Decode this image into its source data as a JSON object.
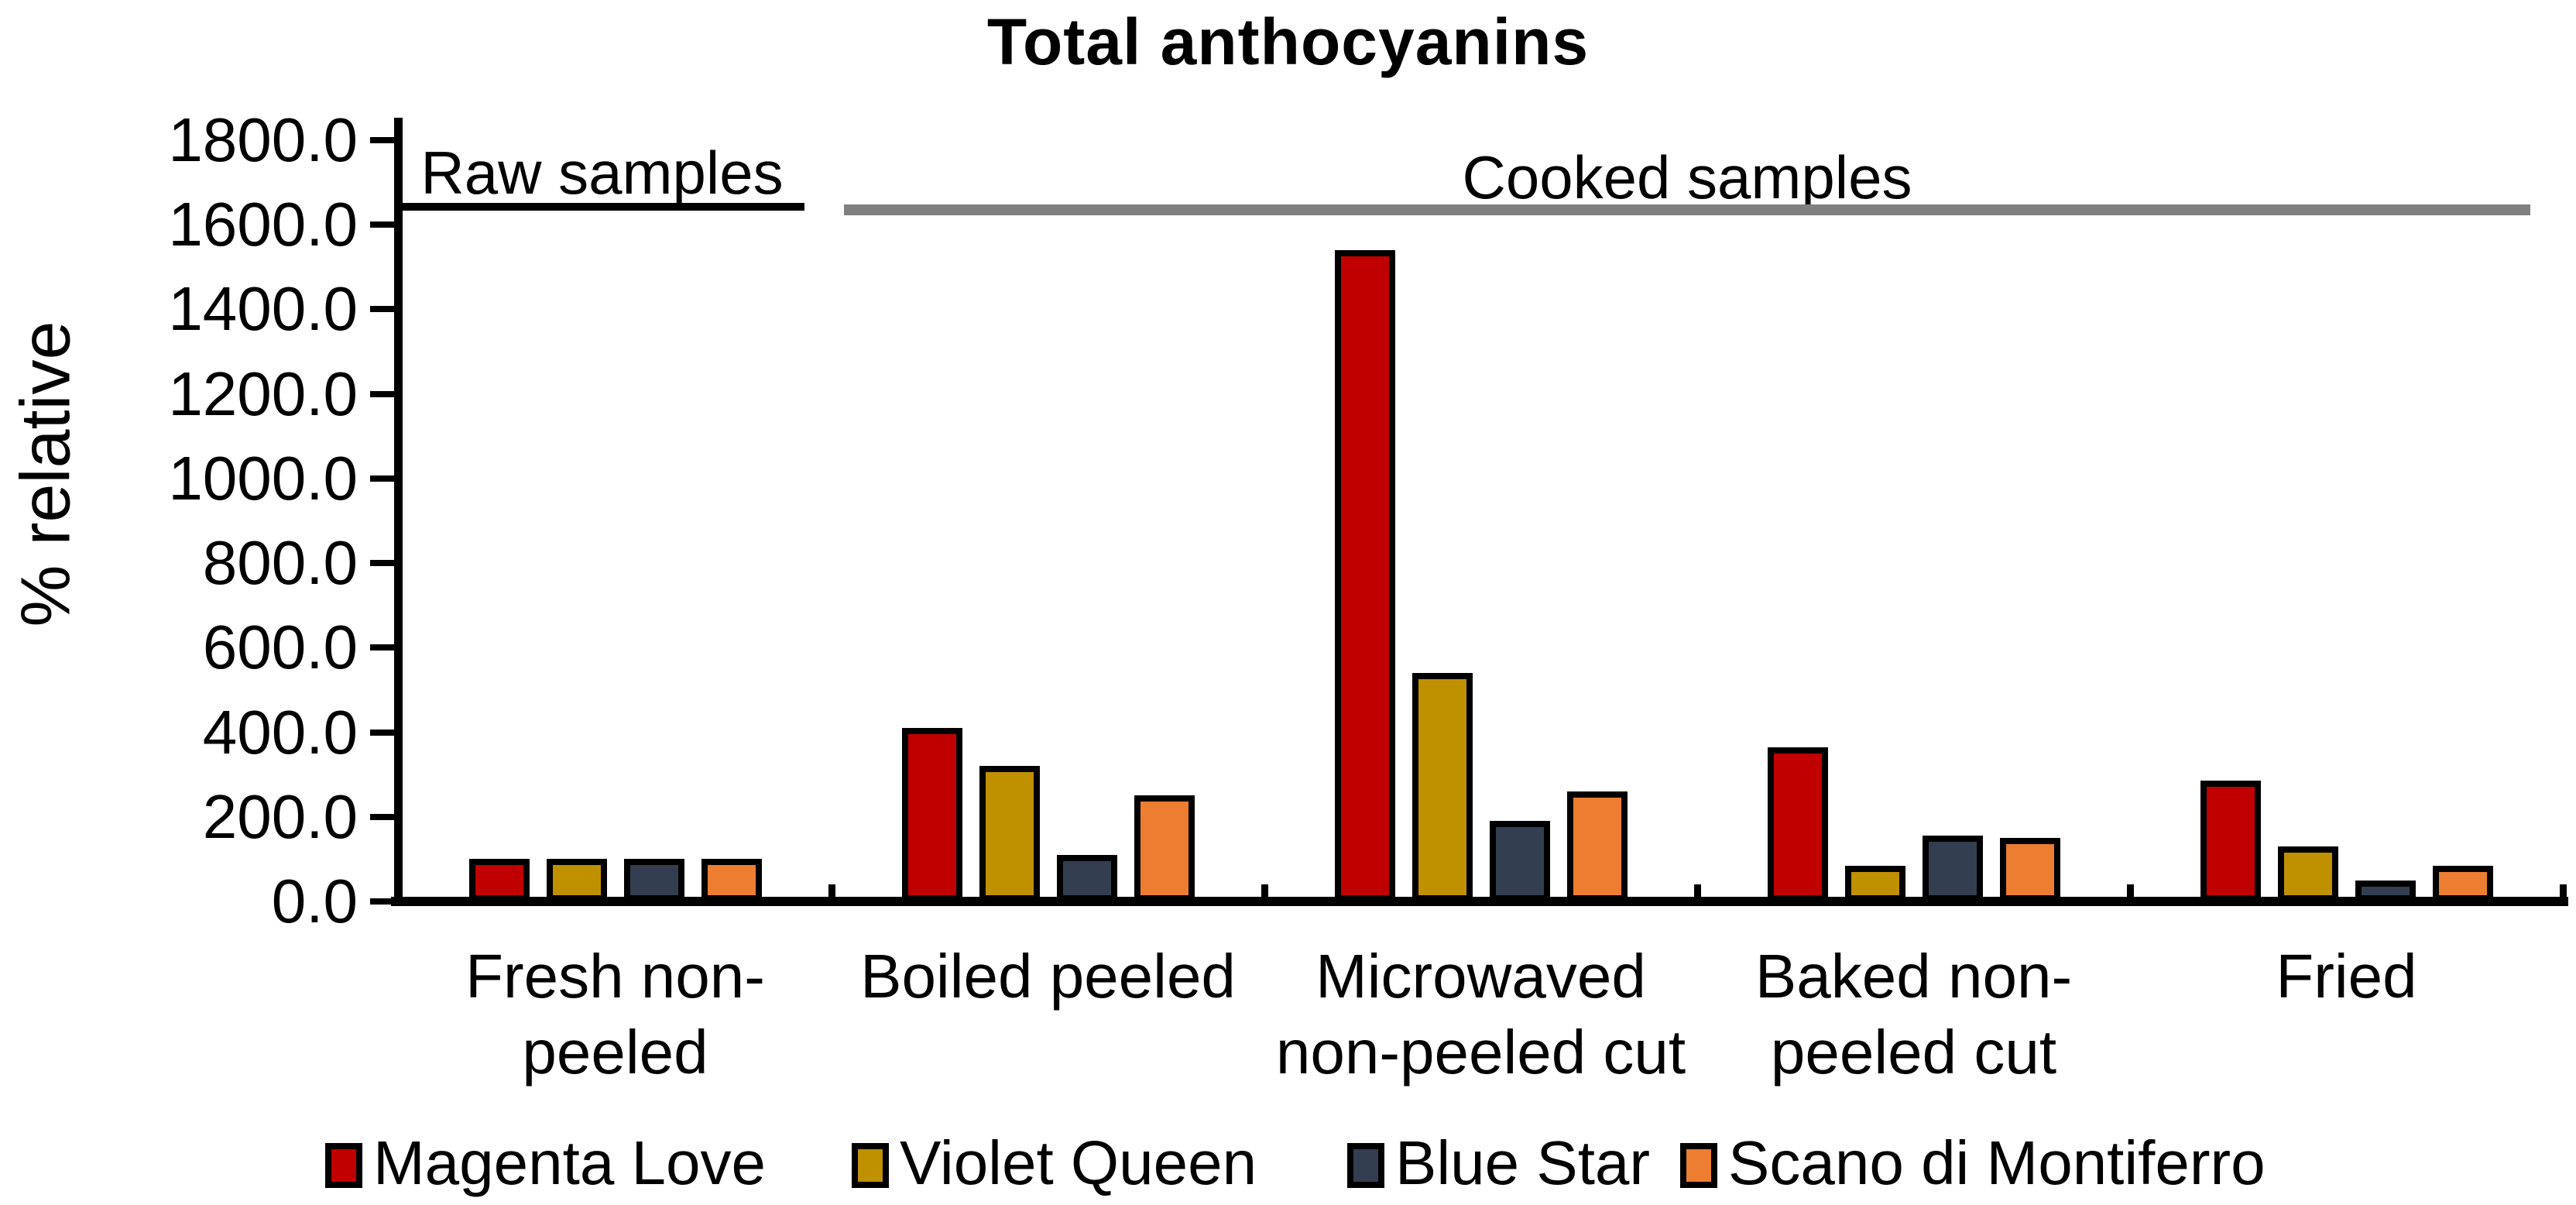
{
  "page": {
    "background": "#FFFFFF"
  },
  "chart_data": {
    "type": "bar",
    "title": "Total anthocyanins",
    "ylabel": "% relative",
    "xlabel": "",
    "ylim": [
      0,
      1800
    ],
    "y_tick_step": 200,
    "y_tick_labels": [
      "0.0",
      "200.0",
      "400.0",
      "600.0",
      "800.0",
      "1000.0",
      "1200.0",
      "1400.0",
      "1600.0",
      "1800.0"
    ],
    "grid": false,
    "legend_position": "bottom",
    "categories": [
      "Fresh non-\npeeled",
      "Boiled peeled",
      "Microwaved\nnon-peeled cut",
      "Baked non-\npeeled cut",
      "Fried"
    ],
    "series": [
      {
        "name": "Magenta Love",
        "color": "#C00000",
        "values": [
          100,
          410,
          1540,
          365,
          285
        ]
      },
      {
        "name": "Violet Queen",
        "color": "#BF9000",
        "values": [
          100,
          320,
          540,
          85,
          130
        ]
      },
      {
        "name": "Blue Star",
        "color": "#333F50",
        "values": [
          100,
          110,
          190,
          155,
          50
        ]
      },
      {
        "name": "Scano di Montiferro",
        "color": "#ED7D31",
        "values": [
          100,
          250,
          260,
          150,
          85
        ]
      }
    ],
    "annotations": [
      {
        "text": "Raw samples",
        "underline_color": "#000000",
        "level": 1600
      },
      {
        "text": "Cooked samples",
        "underline_color": "#808080",
        "level": 1600
      }
    ],
    "axis_color": "#000000",
    "bar_border_color": "#000000"
  }
}
